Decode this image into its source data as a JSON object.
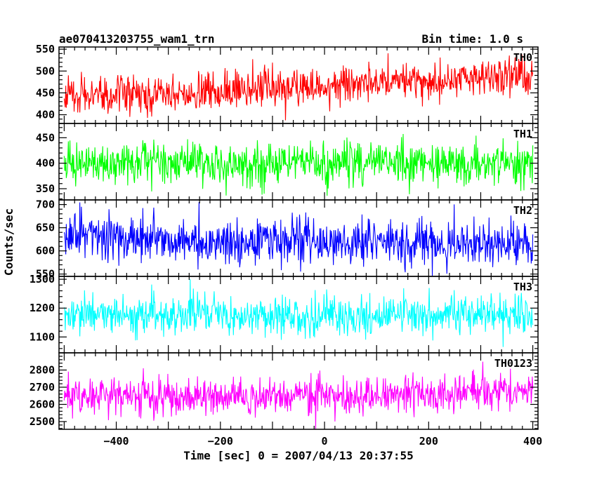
{
  "header": {
    "title": "ae070413203755_wam1_trn",
    "bin_time": "Bin time: 1.0 s"
  },
  "chart_data": {
    "type": "line",
    "xlabel": "Time [sec] 0 = 2007/04/13 20:37:55",
    "ylabel": "Counts/sec",
    "xlim": [
      -510,
      410
    ],
    "x_ticks": [
      -400,
      -200,
      0,
      200,
      400
    ],
    "x_range": [
      -500,
      400
    ],
    "x_step": 1,
    "grid": false,
    "legend": "none",
    "panels": [
      {
        "name": "TH0",
        "color": "#ff0000",
        "ylim": [
          380,
          555
        ],
        "y_ticks": [
          400,
          450,
          500,
          550
        ],
        "trend": [
          [
            -500,
            445
          ],
          [
            -100,
            455
          ],
          [
            0,
            465
          ],
          [
            100,
            475
          ],
          [
            250,
            480
          ],
          [
            400,
            495
          ]
        ],
        "noise_sd": 22
      },
      {
        "name": "TH1",
        "color": "#00ff00",
        "ylim": [
          328,
          478
        ],
        "y_ticks": [
          350,
          400,
          450
        ],
        "trend": [
          [
            -500,
            400
          ],
          [
            0,
            400
          ],
          [
            400,
            400
          ]
        ],
        "noise_sd": 20
      },
      {
        "name": "TH2",
        "color": "#0000ff",
        "ylim": [
          545,
          710
        ],
        "y_ticks": [
          550,
          600,
          650,
          700
        ],
        "trend": [
          [
            -500,
            635
          ],
          [
            -300,
            628
          ],
          [
            -150,
            615
          ],
          [
            -100,
            625
          ],
          [
            0,
            620
          ],
          [
            400,
            612
          ]
        ],
        "noise_sd": 24
      },
      {
        "name": "TH3",
        "color": "#00ffff",
        "ylim": [
          1045,
          1310
        ],
        "y_ticks": [
          1100,
          1200,
          1300
        ],
        "trend": [
          [
            -500,
            1180
          ],
          [
            0,
            1175
          ],
          [
            400,
            1175
          ]
        ],
        "noise_sd": 35
      },
      {
        "name": "TH0123",
        "color": "#ff00ff",
        "ylim": [
          2455,
          2900
        ],
        "y_ticks": [
          2500,
          2600,
          2700,
          2800
        ],
        "trend": [
          [
            -500,
            2655
          ],
          [
            -100,
            2640
          ],
          [
            0,
            2640
          ],
          [
            200,
            2660
          ],
          [
            400,
            2690
          ]
        ],
        "noise_sd": 55
      }
    ]
  }
}
